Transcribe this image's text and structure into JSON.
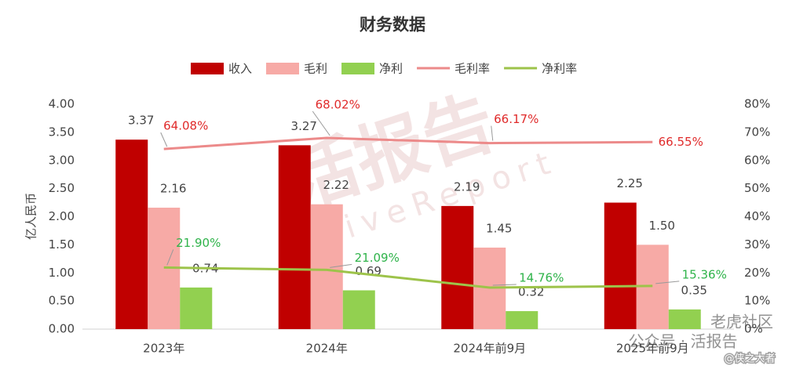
{
  "chart_data": {
    "type": "bar",
    "title": "财务数据",
    "y_label": "亿人民币",
    "categories": [
      "2023年",
      "2024年",
      "2024年前9月",
      "2025年前9月"
    ],
    "series": [
      {
        "name": "收入",
        "color": "#c00000",
        "values": [
          3.37,
          3.27,
          2.19,
          2.25
        ]
      },
      {
        "name": "毛利",
        "color": "#f7aaa6",
        "values": [
          2.16,
          2.22,
          1.45,
          1.5
        ],
        "value_labels": [
          "2.16",
          "2.22",
          "1.45",
          "1.50"
        ]
      },
      {
        "name": "净利",
        "color": "#92d050",
        "values": [
          0.74,
          0.69,
          0.32,
          0.35
        ]
      },
      {
        "name": "毛利率",
        "type": "line",
        "axis": "y2",
        "color": "#ec8a8a",
        "label_color": "#e02a2a",
        "values": [
          64.08,
          68.02,
          66.17,
          66.55
        ],
        "value_labels": [
          "64.08%",
          "68.02%",
          "66.17%",
          "66.55%"
        ]
      },
      {
        "name": "净利率",
        "type": "line",
        "axis": "y2",
        "color": "#9dc34a",
        "label_color": "#2fb34a",
        "values": [
          21.9,
          21.09,
          14.76,
          15.36
        ],
        "value_labels": [
          "21.90%",
          "21.09%",
          "14.76%",
          "15.36%"
        ]
      }
    ],
    "ylim": [
      0,
      4
    ],
    "yticks": [
      {
        "value": 0,
        "label": "0.00"
      },
      {
        "value": 0.5,
        "label": "0.50"
      },
      {
        "value": 1,
        "label": "1.00"
      },
      {
        "value": 1.5,
        "label": "1.50"
      },
      {
        "value": 2,
        "label": "2.00"
      },
      {
        "value": 2.5,
        "label": "2.50"
      },
      {
        "value": 3,
        "label": "3.00"
      },
      {
        "value": 3.5,
        "label": "3.50"
      },
      {
        "value": 4,
        "label": "4.00"
      }
    ],
    "y2lim": [
      0,
      80
    ],
    "y2ticks": [
      {
        "value": 0,
        "label": "0%"
      },
      {
        "value": 10,
        "label": "10%"
      },
      {
        "value": 20,
        "label": "20%"
      },
      {
        "value": 30,
        "label": "30%"
      },
      {
        "value": 40,
        "label": "40%"
      },
      {
        "value": 50,
        "label": "50%"
      },
      {
        "value": 60,
        "label": "60%"
      },
      {
        "value": 70,
        "label": "70%"
      },
      {
        "value": 80,
        "label": "80%"
      }
    ],
    "legend": "top"
  },
  "watermark": [
    "活报告",
    "LiveReport",
    "公众号 · 活报告",
    "老虎社区",
    "@侠之大者"
  ]
}
